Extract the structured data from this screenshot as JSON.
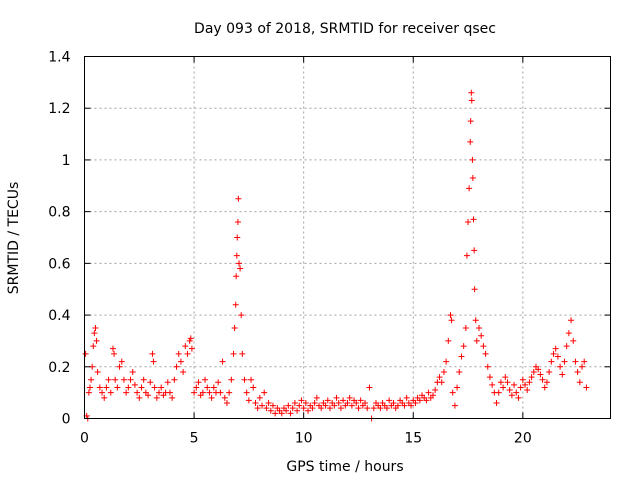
{
  "chart_data": {
    "type": "scatter",
    "title": "Day 093 of 2018, SRMTID for receiver qsec",
    "xlabel": "GPS time / hours",
    "ylabel": "SRMTID / TECUs",
    "xlim": [
      0,
      24
    ],
    "ylim": [
      0,
      1.4
    ],
    "xticks": [
      0,
      5,
      10,
      15,
      20
    ],
    "xtick_labels": [
      "0",
      "5",
      "10",
      "15",
      "20"
    ],
    "yticks": [
      0,
      0.2,
      0.4,
      0.6,
      0.8,
      1.0,
      1.2,
      1.4
    ],
    "ytick_labels": [
      "0",
      "0.2",
      "0.4",
      "0.6",
      "0.8",
      "1",
      "1.2",
      "1.4"
    ],
    "grid": true,
    "marker": "plus",
    "color": "#ff0000",
    "series": [
      {
        "name": "SRMTID",
        "points": [
          [
            0.05,
            0.25
          ],
          [
            0.1,
            0.01
          ],
          [
            0.15,
            0.0
          ],
          [
            0.2,
            0.1
          ],
          [
            0.25,
            0.12
          ],
          [
            0.3,
            0.15
          ],
          [
            0.35,
            0.2
          ],
          [
            0.4,
            0.28
          ],
          [
            0.45,
            0.33
          ],
          [
            0.5,
            0.35
          ],
          [
            0.55,
            0.3
          ],
          [
            0.6,
            0.18
          ],
          [
            0.7,
            0.12
          ],
          [
            0.8,
            0.1
          ],
          [
            0.9,
            0.08
          ],
          [
            1.0,
            0.12
          ],
          [
            1.1,
            0.15
          ],
          [
            1.2,
            0.1
          ],
          [
            1.3,
            0.27
          ],
          [
            1.35,
            0.25
          ],
          [
            1.4,
            0.15
          ],
          [
            1.5,
            0.12
          ],
          [
            1.6,
            0.2
          ],
          [
            1.7,
            0.22
          ],
          [
            1.8,
            0.15
          ],
          [
            1.9,
            0.1
          ],
          [
            2.0,
            0.12
          ],
          [
            2.1,
            0.15
          ],
          [
            2.2,
            0.18
          ],
          [
            2.3,
            0.13
          ],
          [
            2.4,
            0.1
          ],
          [
            2.5,
            0.08
          ],
          [
            2.6,
            0.12
          ],
          [
            2.7,
            0.15
          ],
          [
            2.8,
            0.1
          ],
          [
            2.9,
            0.09
          ],
          [
            3.0,
            0.14
          ],
          [
            3.1,
            0.25
          ],
          [
            3.15,
            0.22
          ],
          [
            3.2,
            0.12
          ],
          [
            3.3,
            0.08
          ],
          [
            3.4,
            0.1
          ],
          [
            3.5,
            0.12
          ],
          [
            3.6,
            0.09
          ],
          [
            3.7,
            0.1
          ],
          [
            3.8,
            0.14
          ],
          [
            3.9,
            0.1
          ],
          [
            4.0,
            0.08
          ],
          [
            4.1,
            0.15
          ],
          [
            4.2,
            0.2
          ],
          [
            4.3,
            0.25
          ],
          [
            4.4,
            0.22
          ],
          [
            4.5,
            0.18
          ],
          [
            4.6,
            0.28
          ],
          [
            4.7,
            0.25
          ],
          [
            4.8,
            0.3
          ],
          [
            4.85,
            0.31
          ],
          [
            4.9,
            0.27
          ],
          [
            5.0,
            0.1
          ],
          [
            5.1,
            0.12
          ],
          [
            5.2,
            0.14
          ],
          [
            5.3,
            0.09
          ],
          [
            5.4,
            0.1
          ],
          [
            5.5,
            0.15
          ],
          [
            5.6,
            0.12
          ],
          [
            5.7,
            0.1
          ],
          [
            5.8,
            0.08
          ],
          [
            5.9,
            0.12
          ],
          [
            6.0,
            0.1
          ],
          [
            6.1,
            0.14
          ],
          [
            6.2,
            0.1
          ],
          [
            6.3,
            0.22
          ],
          [
            6.4,
            0.08
          ],
          [
            6.5,
            0.06
          ],
          [
            6.6,
            0.1
          ],
          [
            6.7,
            0.15
          ],
          [
            6.8,
            0.25
          ],
          [
            6.85,
            0.35
          ],
          [
            6.9,
            0.44
          ],
          [
            6.92,
            0.55
          ],
          [
            6.95,
            0.63
          ],
          [
            6.97,
            0.7
          ],
          [
            7.0,
            0.76
          ],
          [
            7.02,
            0.85
          ],
          [
            7.05,
            0.6
          ],
          [
            7.1,
            0.58
          ],
          [
            7.15,
            0.4
          ],
          [
            7.2,
            0.25
          ],
          [
            7.3,
            0.15
          ],
          [
            7.4,
            0.1
          ],
          [
            7.5,
            0.07
          ],
          [
            7.6,
            0.15
          ],
          [
            7.7,
            0.12
          ],
          [
            7.8,
            0.06
          ],
          [
            7.9,
            0.04
          ],
          [
            8.0,
            0.08
          ],
          [
            8.1,
            0.05
          ],
          [
            8.2,
            0.1
          ],
          [
            8.3,
            0.04
          ],
          [
            8.4,
            0.06
          ],
          [
            8.5,
            0.03
          ],
          [
            8.6,
            0.05
          ],
          [
            8.7,
            0.02
          ],
          [
            8.8,
            0.04
          ],
          [
            8.9,
            0.03
          ],
          [
            9.0,
            0.02
          ],
          [
            9.1,
            0.04
          ],
          [
            9.2,
            0.03
          ],
          [
            9.3,
            0.05
          ],
          [
            9.4,
            0.02
          ],
          [
            9.5,
            0.04
          ],
          [
            9.6,
            0.06
          ],
          [
            9.7,
            0.03
          ],
          [
            9.8,
            0.05
          ],
          [
            9.9,
            0.07
          ],
          [
            10.0,
            0.04
          ],
          [
            10.1,
            0.06
          ],
          [
            10.2,
            0.03
          ],
          [
            10.3,
            0.05
          ],
          [
            10.4,
            0.04
          ],
          [
            10.5,
            0.06
          ],
          [
            10.6,
            0.08
          ],
          [
            10.7,
            0.05
          ],
          [
            10.8,
            0.04
          ],
          [
            10.9,
            0.06
          ],
          [
            11.0,
            0.05
          ],
          [
            11.1,
            0.07
          ],
          [
            11.2,
            0.04
          ],
          [
            11.3,
            0.06
          ],
          [
            11.4,
            0.05
          ],
          [
            11.5,
            0.08
          ],
          [
            11.6,
            0.06
          ],
          [
            11.7,
            0.04
          ],
          [
            11.8,
            0.07
          ],
          [
            11.9,
            0.05
          ],
          [
            12.0,
            0.06
          ],
          [
            12.1,
            0.08
          ],
          [
            12.2,
            0.05
          ],
          [
            12.3,
            0.07
          ],
          [
            12.4,
            0.06
          ],
          [
            12.5,
            0.04
          ],
          [
            12.6,
            0.07
          ],
          [
            12.7,
            0.05
          ],
          [
            12.8,
            0.06
          ],
          [
            12.9,
            0.04
          ],
          [
            13.0,
            0.12
          ],
          [
            13.1,
            0.0
          ],
          [
            13.2,
            0.04
          ],
          [
            13.3,
            0.06
          ],
          [
            13.4,
            0.05
          ],
          [
            13.5,
            0.04
          ],
          [
            13.6,
            0.06
          ],
          [
            13.7,
            0.05
          ],
          [
            13.8,
            0.04
          ],
          [
            13.9,
            0.07
          ],
          [
            14.0,
            0.05
          ],
          [
            14.1,
            0.06
          ],
          [
            14.2,
            0.04
          ],
          [
            14.3,
            0.05
          ],
          [
            14.4,
            0.07
          ],
          [
            14.5,
            0.06
          ],
          [
            14.6,
            0.05
          ],
          [
            14.7,
            0.08
          ],
          [
            14.8,
            0.06
          ],
          [
            14.9,
            0.05
          ],
          [
            15.0,
            0.07
          ],
          [
            15.1,
            0.06
          ],
          [
            15.2,
            0.08
          ],
          [
            15.3,
            0.07
          ],
          [
            15.4,
            0.09
          ],
          [
            15.5,
            0.08
          ],
          [
            15.6,
            0.07
          ],
          [
            15.7,
            0.1
          ],
          [
            15.8,
            0.08
          ],
          [
            15.9,
            0.09
          ],
          [
            16.0,
            0.11
          ],
          [
            16.1,
            0.14
          ],
          [
            16.2,
            0.16
          ],
          [
            16.3,
            0.14
          ],
          [
            16.4,
            0.18
          ],
          [
            16.5,
            0.22
          ],
          [
            16.6,
            0.3
          ],
          [
            16.7,
            0.4
          ],
          [
            16.75,
            0.38
          ],
          [
            16.8,
            0.1
          ],
          [
            16.9,
            0.05
          ],
          [
            17.0,
            0.12
          ],
          [
            17.1,
            0.18
          ],
          [
            17.2,
            0.24
          ],
          [
            17.3,
            0.28
          ],
          [
            17.4,
            0.35
          ],
          [
            17.45,
            0.63
          ],
          [
            17.5,
            0.76
          ],
          [
            17.55,
            0.89
          ],
          [
            17.6,
            1.07
          ],
          [
            17.62,
            1.15
          ],
          [
            17.65,
            1.26
          ],
          [
            17.67,
            1.23
          ],
          [
            17.7,
            1.0
          ],
          [
            17.72,
            0.93
          ],
          [
            17.75,
            0.77
          ],
          [
            17.78,
            0.65
          ],
          [
            17.8,
            0.5
          ],
          [
            17.85,
            0.38
          ],
          [
            17.9,
            0.3
          ],
          [
            18.0,
            0.35
          ],
          [
            18.1,
            0.32
          ],
          [
            18.2,
            0.28
          ],
          [
            18.3,
            0.25
          ],
          [
            18.4,
            0.2
          ],
          [
            18.5,
            0.16
          ],
          [
            18.6,
            0.13
          ],
          [
            18.7,
            0.1
          ],
          [
            18.8,
            0.06
          ],
          [
            18.9,
            0.1
          ],
          [
            19.0,
            0.14
          ],
          [
            19.1,
            0.12
          ],
          [
            19.2,
            0.16
          ],
          [
            19.3,
            0.14
          ],
          [
            19.4,
            0.11
          ],
          [
            19.5,
            0.09
          ],
          [
            19.6,
            0.13
          ],
          [
            19.7,
            0.1
          ],
          [
            19.8,
            0.08
          ],
          [
            19.9,
            0.12
          ],
          [
            20.0,
            0.15
          ],
          [
            20.1,
            0.13
          ],
          [
            20.2,
            0.11
          ],
          [
            20.3,
            0.14
          ],
          [
            20.4,
            0.16
          ],
          [
            20.5,
            0.18
          ],
          [
            20.6,
            0.2
          ],
          [
            20.7,
            0.19
          ],
          [
            20.8,
            0.17
          ],
          [
            20.9,
            0.15
          ],
          [
            21.0,
            0.12
          ],
          [
            21.1,
            0.14
          ],
          [
            21.2,
            0.18
          ],
          [
            21.3,
            0.22
          ],
          [
            21.4,
            0.25
          ],
          [
            21.5,
            0.27
          ],
          [
            21.6,
            0.24
          ],
          [
            21.7,
            0.2
          ],
          [
            21.8,
            0.17
          ],
          [
            21.9,
            0.22
          ],
          [
            22.0,
            0.28
          ],
          [
            22.1,
            0.33
          ],
          [
            22.2,
            0.38
          ],
          [
            22.3,
            0.3
          ],
          [
            22.4,
            0.22
          ],
          [
            22.5,
            0.18
          ],
          [
            22.6,
            0.14
          ],
          [
            22.7,
            0.2
          ],
          [
            22.8,
            0.22
          ],
          [
            22.9,
            0.12
          ]
        ]
      }
    ]
  }
}
